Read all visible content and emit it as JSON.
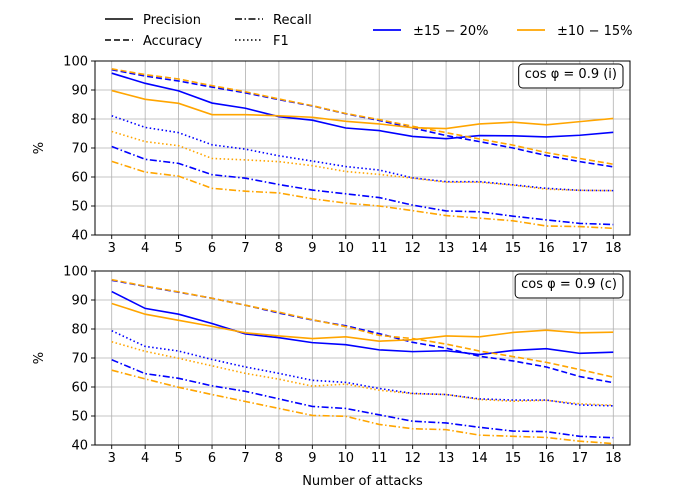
{
  "legend_styles": {
    "entries": [
      {
        "label": "Precision",
        "dash": "solid"
      },
      {
        "label": "Recall",
        "dash": "dashdot"
      },
      {
        "label": "Accuracy",
        "dash": "dashed"
      },
      {
        "label": "F1",
        "dash": "dotted"
      }
    ]
  },
  "legend_colors": {
    "entries": [
      {
        "label": "±15 − 20%",
        "color": "#0000ff"
      },
      {
        "label": "±10 − 15%",
        "color": "#ffa500"
      }
    ]
  },
  "colors": {
    "blue": "#0000ff",
    "orange": "#ffa500",
    "grid": "#b0b0b0"
  },
  "chart_data": [
    {
      "type": "line",
      "annotation": "cos φ = 0.9 (i)",
      "ylabel": "%",
      "xlabel": "",
      "x": [
        3,
        4,
        5,
        6,
        7,
        8,
        9,
        10,
        11,
        12,
        13,
        14,
        15,
        16,
        17,
        18
      ],
      "xticks": [
        "3",
        "4",
        "5",
        "6",
        "7",
        "8",
        "9",
        "10",
        "11",
        "12",
        "13",
        "14",
        "15",
        "16",
        "17",
        "18"
      ],
      "ylim": [
        40,
        100
      ],
      "yticks": [
        40,
        50,
        60,
        70,
        80,
        90,
        100
      ],
      "grid": true,
      "series": [
        {
          "metric": "Precision",
          "group": "±15 − 20%",
          "color": "#0000ff",
          "dash": "solid",
          "values": [
            95.8,
            92.3,
            89.7,
            85.5,
            83.7,
            80.8,
            79.6,
            76.9,
            76.0,
            74.0,
            73.2,
            74.3,
            74.2,
            73.8,
            74.4,
            75.4
          ]
        },
        {
          "metric": "Accuracy",
          "group": "±15 − 20%",
          "color": "#0000ff",
          "dash": "dashed",
          "values": [
            97.0,
            94.8,
            93.1,
            91.0,
            89.0,
            86.7,
            84.5,
            81.8,
            79.5,
            76.9,
            74.3,
            72.2,
            70.0,
            67.4,
            65.3,
            63.5
          ]
        },
        {
          "metric": "Recall",
          "group": "±15 − 20%",
          "color": "#0000ff",
          "dash": "dashdot",
          "values": [
            70.5,
            66.1,
            64.7,
            60.8,
            59.6,
            57.4,
            55.5,
            54.2,
            52.9,
            50.3,
            48.3,
            48.0,
            46.5,
            45.2,
            44.0,
            43.6
          ]
        },
        {
          "metric": "F1",
          "group": "±15 − 20%",
          "color": "#0000ff",
          "dash": "dotted",
          "values": [
            81.1,
            77.1,
            75.3,
            71.1,
            69.6,
            67.3,
            65.5,
            63.6,
            62.4,
            59.7,
            58.4,
            58.4,
            57.3,
            56.1,
            55.4,
            55.3
          ]
        },
        {
          "metric": "Precision",
          "group": "±10 − 15%",
          "color": "#ffa500",
          "dash": "solid",
          "values": [
            89.8,
            86.8,
            85.4,
            81.5,
            81.5,
            81.1,
            80.6,
            79.2,
            78.3,
            77.0,
            76.7,
            78.3,
            78.9,
            78.0,
            79.1,
            80.2
          ]
        },
        {
          "metric": "Accuracy",
          "group": "±10 − 15%",
          "color": "#ffa500",
          "dash": "dashed",
          "values": [
            97.3,
            95.3,
            93.8,
            91.5,
            89.4,
            86.9,
            84.6,
            81.9,
            79.8,
            77.5,
            75.3,
            73.1,
            71.0,
            68.4,
            66.4,
            64.4
          ]
        },
        {
          "metric": "Recall",
          "group": "±10 − 15%",
          "color": "#ffa500",
          "dash": "dashdot",
          "values": [
            65.4,
            61.7,
            60.3,
            56.1,
            55.1,
            54.5,
            52.5,
            51.0,
            50.0,
            48.4,
            46.7,
            45.8,
            44.9,
            43.1,
            42.9,
            42.3
          ]
        },
        {
          "metric": "F1",
          "group": "±10 − 15%",
          "color": "#ffa500",
          "dash": "dotted",
          "values": [
            75.7,
            72.2,
            70.8,
            66.4,
            65.9,
            65.3,
            63.9,
            61.9,
            60.9,
            59.6,
            58.2,
            58.2,
            57.2,
            55.8,
            55.4,
            55.3
          ]
        }
      ]
    },
    {
      "type": "line",
      "annotation": "cos φ = 0.9 (c)",
      "ylabel": "%",
      "xlabel": "Number of attacks",
      "x": [
        3,
        4,
        5,
        6,
        7,
        8,
        9,
        10,
        11,
        12,
        13,
        14,
        15,
        16,
        17,
        18
      ],
      "xticks": [
        "3",
        "4",
        "5",
        "6",
        "7",
        "8",
        "9",
        "10",
        "11",
        "12",
        "13",
        "14",
        "15",
        "16",
        "17",
        "18"
      ],
      "ylim": [
        40,
        100
      ],
      "yticks": [
        40,
        50,
        60,
        70,
        80,
        90,
        100
      ],
      "grid": true,
      "series": [
        {
          "metric": "Precision",
          "group": "±15 − 20%",
          "color": "#0000ff",
          "dash": "solid",
          "values": [
            92.9,
            87.1,
            85.1,
            81.9,
            78.3,
            77.0,
            75.3,
            74.6,
            72.8,
            72.2,
            72.5,
            71.2,
            72.6,
            73.2,
            71.6,
            72.0
          ]
        },
        {
          "metric": "Accuracy",
          "group": "±15 − 20%",
          "color": "#0000ff",
          "dash": "dashed",
          "values": [
            96.8,
            94.7,
            92.7,
            90.6,
            88.2,
            85.5,
            83.1,
            81.1,
            78.4,
            75.4,
            73.4,
            70.6,
            69.0,
            66.9,
            63.6,
            61.5
          ]
        },
        {
          "metric": "Recall",
          "group": "±15 − 20%",
          "color": "#0000ff",
          "dash": "dashdot",
          "values": [
            69.4,
            64.6,
            63.0,
            60.4,
            58.5,
            55.9,
            53.3,
            52.6,
            50.4,
            48.2,
            47.6,
            46.1,
            44.8,
            44.6,
            43.0,
            42.5
          ]
        },
        {
          "metric": "F1",
          "group": "±15 − 20%",
          "color": "#0000ff",
          "dash": "dotted",
          "values": [
            79.4,
            74.0,
            72.4,
            69.5,
            66.9,
            64.7,
            62.3,
            61.6,
            59.5,
            57.8,
            57.4,
            55.9,
            55.5,
            55.5,
            53.8,
            53.5
          ]
        },
        {
          "metric": "Precision",
          "group": "±10 − 15%",
          "color": "#ffa500",
          "dash": "solid",
          "values": [
            88.8,
            85.1,
            83.0,
            80.9,
            78.7,
            77.6,
            76.7,
            77.3,
            75.8,
            76.3,
            77.6,
            77.3,
            78.8,
            79.6,
            78.7,
            78.9
          ]
        },
        {
          "metric": "Accuracy",
          "group": "±10 − 15%",
          "color": "#ffa500",
          "dash": "dashed",
          "values": [
            97.0,
            94.8,
            92.8,
            90.6,
            88.2,
            85.8,
            83.2,
            80.8,
            77.8,
            76.7,
            74.8,
            72.4,
            70.5,
            68.5,
            66.0,
            63.4
          ]
        },
        {
          "metric": "Recall",
          "group": "±10 − 15%",
          "color": "#ffa500",
          "dash": "dashdot",
          "values": [
            65.8,
            62.8,
            59.9,
            57.4,
            55.0,
            52.6,
            50.2,
            49.9,
            47.1,
            45.6,
            45.3,
            43.4,
            43.0,
            42.6,
            41.3,
            40.5
          ]
        },
        {
          "metric": "F1",
          "group": "±10 − 15%",
          "color": "#ffa500",
          "dash": "dotted",
          "values": [
            75.6,
            72.3,
            69.9,
            67.3,
            64.7,
            62.7,
            60.3,
            61.0,
            58.9,
            57.7,
            57.4,
            55.7,
            55.1,
            55.4,
            54.2,
            53.7
          ]
        }
      ]
    }
  ]
}
